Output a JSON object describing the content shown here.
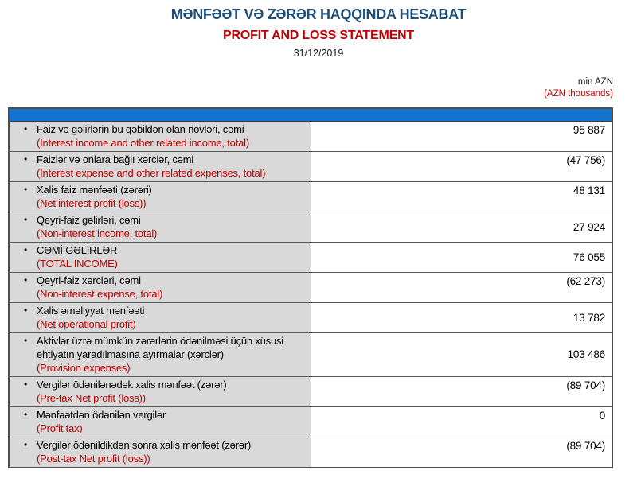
{
  "page": {
    "title_az": "MƏNFƏƏT VƏ ZƏRƏR HAQQINDA HESABAT",
    "title_en": "PROFIT AND LOSS STATEMENT",
    "date": "31/12/2019",
    "unit_line1": "min AZN",
    "unit_line2": "(AZN thousands)"
  },
  "icons": {
    "bullet": "•"
  },
  "colors": {
    "title_navy": "#1F4E79",
    "accent_red": "#C00000",
    "header_bar_blue": "#1273CE",
    "row_grey": "#D9D9D9",
    "border_grey": "#595959"
  },
  "table": {
    "rows": [
      {
        "az": "Faiz və gəlirlərin bu qəbildən olan növləri, cəmi",
        "en": "(Interest income and other related income, total)",
        "value": "95 887",
        "value_align": "top"
      },
      {
        "az": "Faizlər və onlara bağlı xərclər, cəmi",
        "en": "(Interest expense and other related expenses, total)",
        "value": "(47 756)",
        "value_align": "top"
      },
      {
        "az": "Xalis faiz mənfəəti (zərəri)",
        "en": "(Net interest profit (loss))",
        "value": "48 131",
        "value_align": "top"
      },
      {
        "az": "Qeyri-faiz gəlirləri, cəmi",
        "en": "(Non-interest income, total)",
        "value": "27 924",
        "value_align": "middle"
      },
      {
        "az": "CƏMİ GƏLİRLƏR",
        "en": "(TOTAL INCOME)",
        "value": "76 055",
        "value_align": "middle"
      },
      {
        "az": "Qeyri-faiz xərcləri, cəmi",
        "en": "(Non-interest expense, total)",
        "value": "(62 273)",
        "value_align": "top"
      },
      {
        "az": "Xalis əməliyyat mənfəəti",
        "en": "(Net operational profit)",
        "value": "13 782",
        "value_align": "middle"
      },
      {
        "az": "Aktivlər üzrə mümkün zərərlərin ödənilməsi üçün xüsusi ehtiyatın yaradılmasına ayırmalar (xərclər)",
        "en": "(Provision expenses)",
        "value": "103 486",
        "value_align": "middle"
      },
      {
        "az": "Vergilər ödənilənədək xalis mənfəət (zərər)",
        "en": "(Pre-tax Net profit (loss))",
        "value": "(89 704)",
        "value_align": "top"
      },
      {
        "az": "Mənfəətdən ödənilən vergilər",
        "en": "(Profit tax)",
        "value": "0",
        "value_align": "top"
      },
      {
        "az": "Vergilər ödənildikdən sonra xalis mənfəət (zərər)",
        "en": "(Post-tax Net profit (loss))",
        "value": "(89 704)",
        "value_align": "top"
      }
    ]
  }
}
